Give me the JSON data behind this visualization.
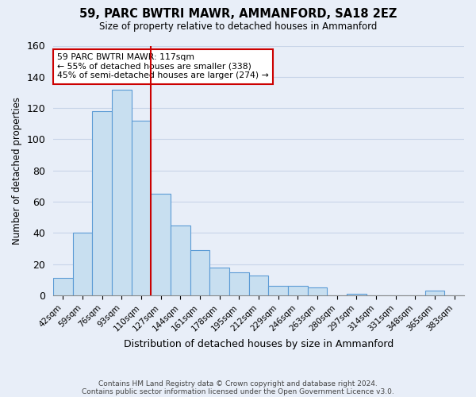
{
  "title": "59, PARC BWTRI MAWR, AMMANFORD, SA18 2EZ",
  "subtitle": "Size of property relative to detached houses in Ammanford",
  "xlabel": "Distribution of detached houses by size in Ammanford",
  "ylabel": "Number of detached properties",
  "footer_line1": "Contains HM Land Registry data © Crown copyright and database right 2024.",
  "footer_line2": "Contains public sector information licensed under the Open Government Licence v3.0.",
  "bin_labels": [
    "42sqm",
    "59sqm",
    "76sqm",
    "93sqm",
    "110sqm",
    "127sqm",
    "144sqm",
    "161sqm",
    "178sqm",
    "195sqm",
    "212sqm",
    "229sqm",
    "246sqm",
    "263sqm",
    "280sqm",
    "297sqm",
    "314sqm",
    "331sqm",
    "348sqm",
    "365sqm",
    "383sqm"
  ],
  "bar_heights": [
    11,
    40,
    118,
    132,
    112,
    65,
    45,
    29,
    18,
    15,
    13,
    6,
    6,
    5,
    0,
    1,
    0,
    0,
    0,
    3,
    0
  ],
  "highlight_bar_index": 4,
  "bar_color": "#c8dff0",
  "bar_edge_color": "#5b9bd5",
  "highlight_line_color": "#cc0000",
  "annotation_text_line1": "59 PARC BWTRI MAWR: 117sqm",
  "annotation_text_line2": "← 55% of detached houses are smaller (338)",
  "annotation_text_line3": "45% of semi-detached houses are larger (274) →",
  "annotation_box_color": "#ffffff",
  "annotation_box_edgecolor": "#cc0000",
  "ylim": [
    0,
    160
  ],
  "yticks": [
    0,
    20,
    40,
    60,
    80,
    100,
    120,
    140,
    160
  ],
  "grid_color": "#c8d4e8",
  "bg_color": "#e8eef8"
}
